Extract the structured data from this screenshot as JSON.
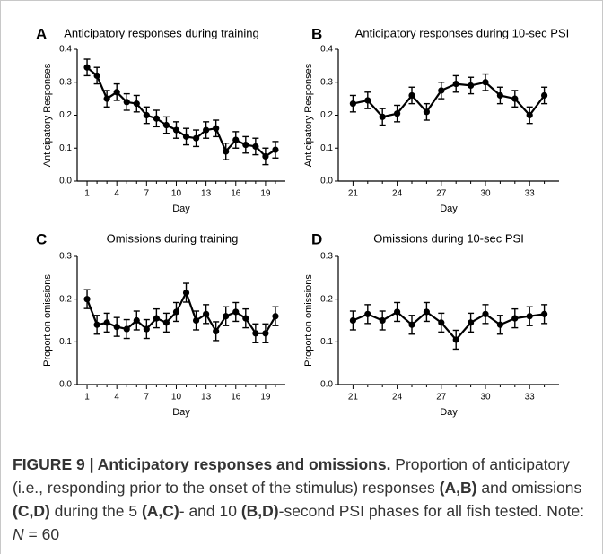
{
  "chart_data": [
    {
      "panel": "A",
      "type": "line",
      "title": "Anticipatory responses during training",
      "xlabel": "Day",
      "ylabel": "Anticipatory Responses",
      "x": [
        1,
        2,
        3,
        4,
        5,
        6,
        7,
        8,
        9,
        10,
        11,
        12,
        13,
        14,
        15,
        16,
        17,
        18,
        19,
        20
      ],
      "series": [
        {
          "values": [
            0.345,
            0.32,
            0.25,
            0.27,
            0.24,
            0.235,
            0.2,
            0.19,
            0.17,
            0.155,
            0.135,
            0.13,
            0.155,
            0.16,
            0.09,
            0.125,
            0.11,
            0.105,
            0.075,
            0.095
          ],
          "errors": [
            0.025,
            0.025,
            0.025,
            0.025,
            0.025,
            0.025,
            0.025,
            0.025,
            0.025,
            0.025,
            0.025,
            0.025,
            0.025,
            0.025,
            0.025,
            0.025,
            0.025,
            0.025,
            0.025,
            0.025
          ]
        }
      ],
      "xlim": [
        0,
        21
      ],
      "xticks": [
        1,
        4,
        7,
        10,
        13,
        16,
        19
      ],
      "ylim": [
        0,
        0.4
      ],
      "yticks": [
        "0.0",
        "0.1",
        "0.2",
        "0.3",
        "0.4"
      ],
      "grid": false
    },
    {
      "panel": "B",
      "type": "line",
      "title": "Anticipatory responses during 10-sec PSI",
      "xlabel": "Day",
      "ylabel": "Anticipatory Responses",
      "x": [
        21,
        22,
        23,
        24,
        25,
        26,
        27,
        28,
        29,
        30,
        31,
        32,
        33,
        34
      ],
      "series": [
        {
          "values": [
            0.235,
            0.245,
            0.195,
            0.205,
            0.26,
            0.21,
            0.275,
            0.295,
            0.29,
            0.3,
            0.26,
            0.25,
            0.2,
            0.26
          ],
          "errors": [
            0.025,
            0.025,
            0.025,
            0.025,
            0.025,
            0.025,
            0.025,
            0.025,
            0.025,
            0.025,
            0.025,
            0.025,
            0.025,
            0.025
          ]
        }
      ],
      "xlim": [
        20,
        35
      ],
      "xticks": [
        21,
        24,
        27,
        30,
        33
      ],
      "ylim": [
        0,
        0.4
      ],
      "yticks": [
        "0.0",
        "0.1",
        "0.2",
        "0.3",
        "0.4"
      ],
      "grid": false
    },
    {
      "panel": "C",
      "type": "line",
      "title": "Omissions during training",
      "xlabel": "Day",
      "ylabel": "Proportion omissions",
      "x": [
        1,
        2,
        3,
        4,
        5,
        6,
        7,
        8,
        9,
        10,
        11,
        12,
        13,
        14,
        15,
        16,
        17,
        18,
        19,
        20
      ],
      "series": [
        {
          "values": [
            0.2,
            0.14,
            0.145,
            0.135,
            0.13,
            0.15,
            0.13,
            0.155,
            0.145,
            0.17,
            0.215,
            0.15,
            0.165,
            0.125,
            0.16,
            0.17,
            0.155,
            0.12,
            0.12,
            0.16
          ],
          "errors": [
            0.022,
            0.022,
            0.022,
            0.022,
            0.022,
            0.022,
            0.022,
            0.022,
            0.022,
            0.022,
            0.022,
            0.022,
            0.022,
            0.022,
            0.022,
            0.022,
            0.022,
            0.022,
            0.022,
            0.022
          ]
        }
      ],
      "xlim": [
        0,
        21
      ],
      "xticks": [
        1,
        4,
        7,
        10,
        13,
        16,
        19
      ],
      "ylim": [
        0,
        0.3
      ],
      "yticks": [
        "0.0",
        "0.1",
        "0.2",
        "0.3"
      ],
      "grid": false
    },
    {
      "panel": "D",
      "type": "line",
      "title": "Omissions during 10-sec PSI",
      "xlabel": "Day",
      "ylabel": "Proportion omissions",
      "x": [
        21,
        22,
        23,
        24,
        25,
        26,
        27,
        28,
        29,
        30,
        31,
        32,
        33,
        34
      ],
      "series": [
        {
          "values": [
            0.15,
            0.165,
            0.15,
            0.17,
            0.14,
            0.17,
            0.145,
            0.105,
            0.145,
            0.165,
            0.14,
            0.155,
            0.16,
            0.165
          ],
          "errors": [
            0.022,
            0.022,
            0.022,
            0.022,
            0.022,
            0.022,
            0.022,
            0.022,
            0.022,
            0.022,
            0.022,
            0.022,
            0.022,
            0.022
          ]
        }
      ],
      "xlim": [
        20,
        35
      ],
      "xticks": [
        21,
        24,
        27,
        30,
        33
      ],
      "ylim": [
        0,
        0.3
      ],
      "yticks": [
        "0.0",
        "0.1",
        "0.2",
        "0.3"
      ],
      "grid": false
    }
  ],
  "caption": {
    "head": "FIGURE 9 | Anticipatory responses and omissions.",
    "t1": " Proportion of anticipatory (i.e., responding prior to the onset of the stimulus) responses ",
    "b1": "(A,B)",
    "t2": " and omissions ",
    "b2": "(C,D)",
    "t3": " during the 5 ",
    "b3": "(A,C)",
    "t4": "- and 10 ",
    "b4": "(B,D)",
    "t5": "-second PSI phases for all fish tested. Note: ",
    "n_sym": "N",
    "t6": " = 60"
  },
  "colors": {
    "series": "#000000",
    "caption_text": "#333333",
    "frame": "#c8c8c8"
  }
}
